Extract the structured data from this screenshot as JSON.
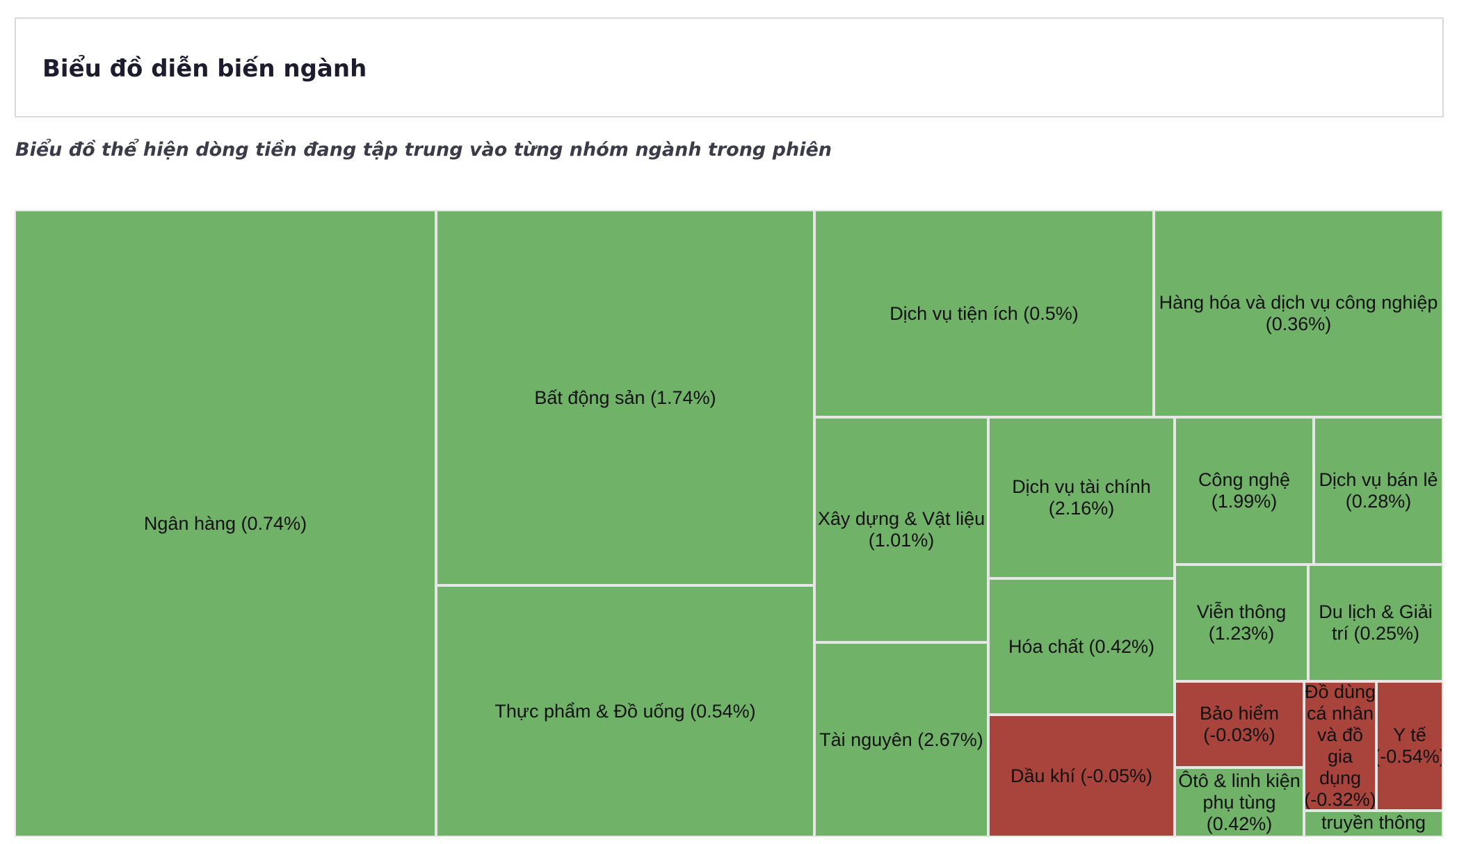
{
  "header": {
    "title": "Biểu đồ diễn biến ngành"
  },
  "subtitle": "Biểu đồ thể hiện dòng tiền đang tập trung vào từng nhóm ngành trong phiên",
  "colors": {
    "positive": "#70b267",
    "negative": "#a8443b",
    "border": "#e6e6e6"
  },
  "chart_data": {
    "type": "treemap",
    "title": "",
    "items": [
      {
        "label": "Ngân hàng (0.74%)",
        "name": "Ngân hàng",
        "change": 0.74
      },
      {
        "label": "Bất động sản (1.74%)",
        "name": "Bất động sản",
        "change": 1.74
      },
      {
        "label": "Thực phẩm & Đồ uống (0.54%)",
        "name": "Thực phẩm & Đồ uống",
        "change": 0.54
      },
      {
        "label": "Dịch vụ tiện ích (0.5%)",
        "name": "Dịch vụ tiện ích",
        "change": 0.5
      },
      {
        "label": "Hàng hóa và dịch vụ công nghiệp (0.36%)",
        "name": "Hàng hóa và dịch vụ công nghiệp",
        "change": 0.36
      },
      {
        "label": "Xây dựng & Vật liệu (1.01%)",
        "name": "Xây dựng & Vật liệu",
        "change": 1.01
      },
      {
        "label": "Tài nguyên (2.67%)",
        "name": "Tài nguyên",
        "change": 2.67
      },
      {
        "label": "Dịch vụ tài chính (2.16%)",
        "name": "Dịch vụ tài chính",
        "change": 2.16
      },
      {
        "label": "Hóa chất (0.42%)",
        "name": "Hóa chất",
        "change": 0.42
      },
      {
        "label": "Dầu khí (-0.05%)",
        "name": "Dầu khí",
        "change": -0.05
      },
      {
        "label": "Công nghệ (1.99%)",
        "name": "Công nghệ",
        "change": 1.99
      },
      {
        "label": "Dịch vụ bán lẻ (0.28%)",
        "name": "Dịch vụ bán lẻ",
        "change": 0.28
      },
      {
        "label": "Viễn thông (1.23%)",
        "name": "Viễn thông",
        "change": 1.23
      },
      {
        "label": "Du lịch & Giải trí (0.25%)",
        "name": "Du lịch & Giải trí",
        "change": 0.25
      },
      {
        "label": "Bảo hiểm (-0.03%)",
        "name": "Bảo hiểm",
        "change": -0.03
      },
      {
        "label": "Ôtô & linh kiện phụ tùng (0.42%)",
        "name": "Ôtô & linh kiện phụ tùng",
        "change": 0.42
      },
      {
        "label": "Đồ dùng cá nhân và đồ gia dụng (-0.32%)",
        "name": "Đồ dùng cá nhân và đồ gia dụng",
        "change": -0.32
      },
      {
        "label": "Y tế (-0.54%)",
        "name": "Y tế",
        "change": -0.54
      },
      {
        "label": "Truyền thông",
        "name": "Truyền thông"
      }
    ]
  }
}
